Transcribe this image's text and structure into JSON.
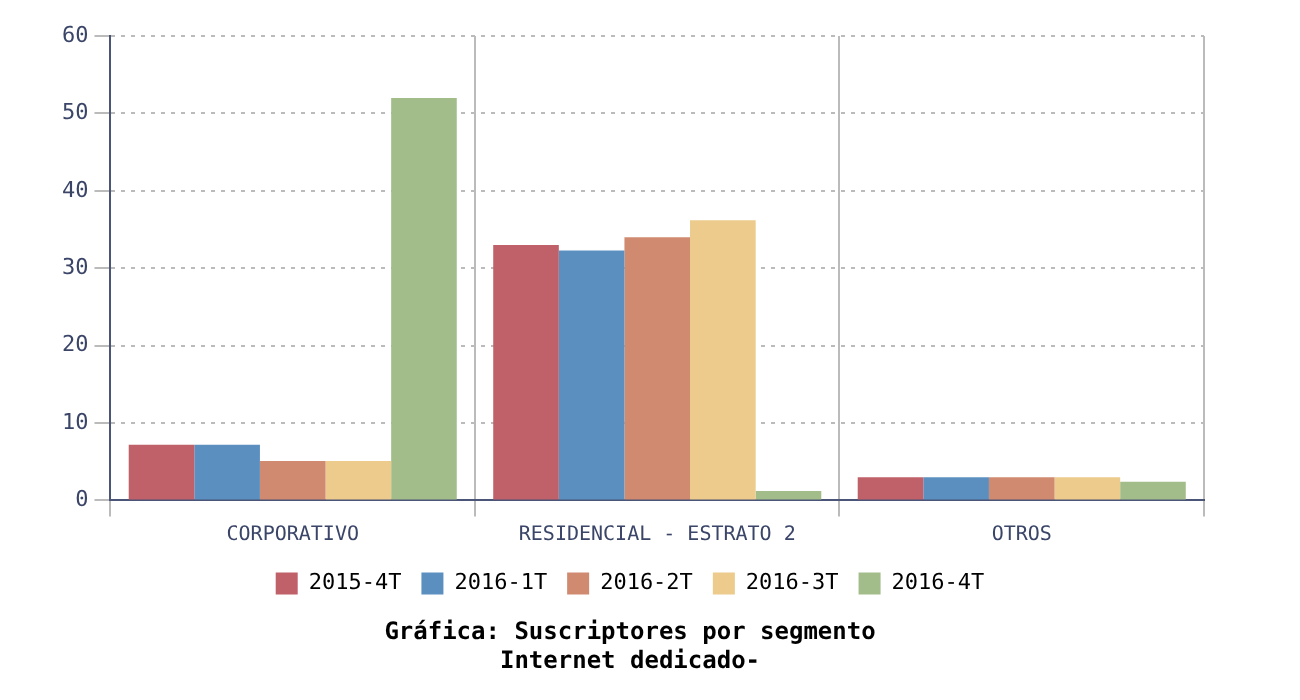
{
  "chart_data": {
    "type": "bar",
    "title": "Gráfica: Suscriptores por segmento",
    "subtitle": "Internet dedicado-",
    "categories": [
      "CORPORATIVO",
      "RESIDENCIAL - ESTRATO 2",
      "OTROS"
    ],
    "series": [
      {
        "name": "2015-4T",
        "color": "#c0616a",
        "values": [
          7.2,
          33,
          3
        ]
      },
      {
        "name": "2016-1T",
        "color": "#5b8fc0",
        "values": [
          7.2,
          32.3,
          3
        ]
      },
      {
        "name": "2016-2T",
        "color": "#d08a70",
        "values": [
          5.1,
          34,
          3
        ]
      },
      {
        "name": "2016-3T",
        "color": "#eccb8c",
        "values": [
          5.1,
          36.2,
          3
        ]
      },
      {
        "name": "2016-4T",
        "color": "#a3bd8a",
        "values": [
          52,
          1.2,
          2.4
        ]
      }
    ],
    "ylim": [
      0,
      60
    ],
    "yticks": [
      0,
      10,
      20,
      30,
      40,
      50,
      60
    ],
    "grid": true,
    "legend": "bottom"
  }
}
